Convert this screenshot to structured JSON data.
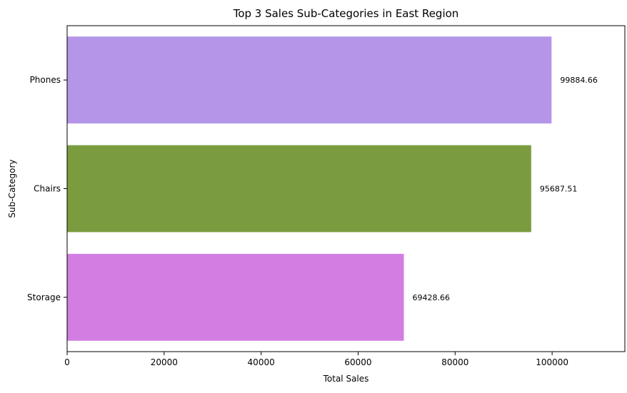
{
  "chart_data": {
    "type": "bar",
    "orientation": "horizontal",
    "title": "Top 3 Sales Sub-Categories in East Region",
    "xlabel": "Total Sales",
    "ylabel": "Sub-Category",
    "categories": [
      "Phones",
      "Chairs",
      "Storage"
    ],
    "values": [
      99884.66,
      95687.51,
      69428.66
    ],
    "data_labels": [
      "99884.66",
      "95687.51",
      "69428.66"
    ],
    "colors": [
      "#b495e8",
      "#7a9c3f",
      "#d37de3"
    ],
    "xlim": [
      0,
      115000
    ],
    "xticks": [
      0,
      20000,
      40000,
      60000,
      80000,
      100000
    ],
    "xtick_labels": [
      "0",
      "20000",
      "40000",
      "60000",
      "80000",
      "100000"
    ],
    "grid": false,
    "legend": "none"
  }
}
